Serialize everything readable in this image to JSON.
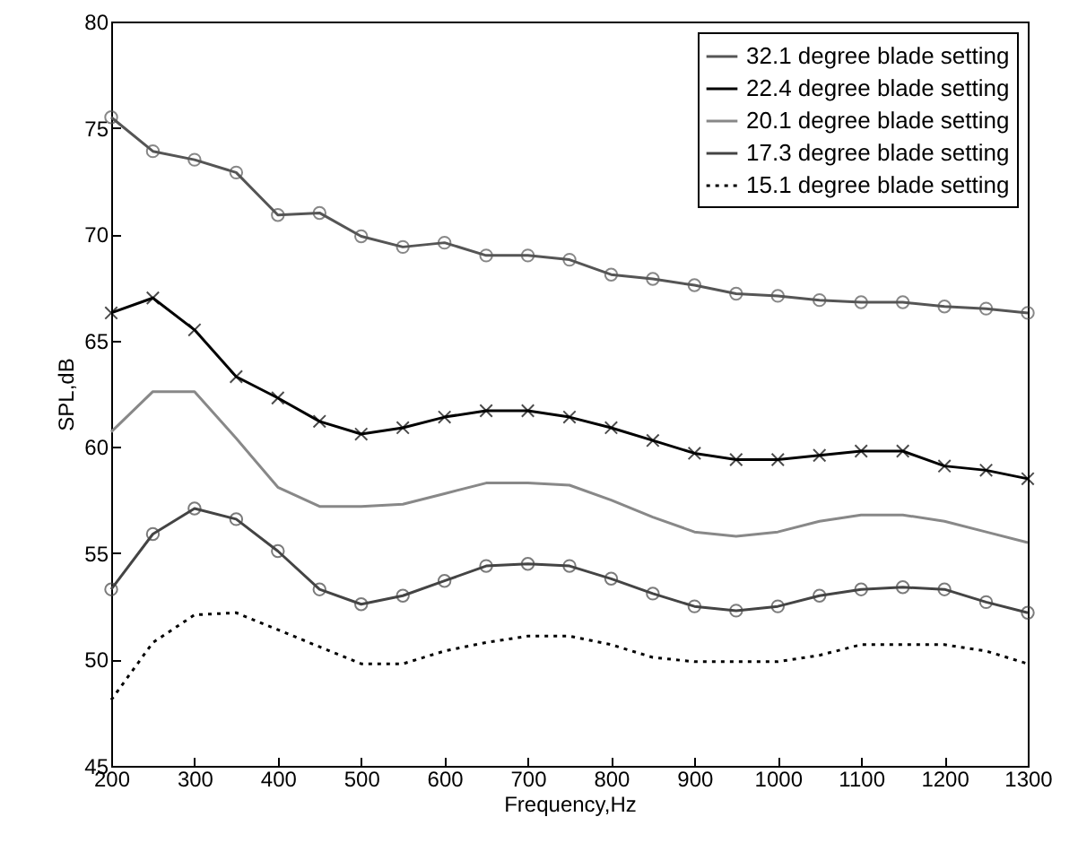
{
  "chart_data": {
    "type": "line",
    "xlabel": "Frequency,Hz",
    "ylabel": "SPL,dB",
    "x": [
      200,
      250,
      300,
      350,
      400,
      450,
      500,
      550,
      600,
      650,
      700,
      750,
      800,
      850,
      900,
      950,
      1000,
      1050,
      1100,
      1150,
      1200,
      1250,
      1300
    ],
    "xlim": [
      200,
      1300
    ],
    "xticks": [
      200,
      300,
      400,
      500,
      600,
      700,
      800,
      900,
      1000,
      1100,
      1200,
      1300
    ],
    "ylim": [
      45,
      80
    ],
    "yticks": [
      45,
      50,
      55,
      60,
      65,
      70,
      75,
      80
    ],
    "grid": false,
    "legend": "top right",
    "series": [
      {
        "name": "32.1 degree blade setting",
        "color": "#555555",
        "marker": "circle",
        "line_style": "solid",
        "values": [
          75.5,
          73.9,
          73.5,
          72.9,
          70.9,
          71.0,
          69.9,
          69.4,
          69.6,
          69.0,
          69.0,
          68.8,
          68.1,
          67.9,
          67.6,
          67.2,
          67.1,
          66.9,
          66.8,
          66.8,
          66.6,
          66.5,
          66.3
        ]
      },
      {
        "name": "22.4 degree blade setting",
        "color": "#000000",
        "marker": "cross",
        "line_style": "solid",
        "values": [
          66.3,
          67.0,
          65.5,
          63.3,
          62.3,
          61.2,
          60.6,
          60.9,
          61.4,
          61.7,
          61.7,
          61.4,
          60.9,
          60.3,
          59.7,
          59.4,
          59.4,
          59.6,
          59.8,
          59.8,
          59.1,
          58.9,
          58.5
        ]
      },
      {
        "name": "20.1 degree blade setting",
        "color": "#888888",
        "marker": "none",
        "line_style": "solid",
        "values": [
          60.7,
          62.6,
          62.6,
          60.4,
          58.1,
          57.2,
          57.2,
          57.3,
          57.8,
          58.3,
          58.3,
          58.2,
          57.5,
          56.7,
          56.0,
          55.8,
          56.0,
          56.5,
          56.8,
          56.8,
          56.5,
          56.0,
          55.5
        ]
      },
      {
        "name": "17.3 degree blade setting",
        "color": "#444444",
        "marker": "circle",
        "line_style": "solid",
        "values": [
          53.3,
          55.9,
          57.1,
          56.6,
          55.1,
          53.3,
          52.6,
          53.0,
          53.7,
          54.4,
          54.5,
          54.4,
          53.8,
          53.1,
          52.5,
          52.3,
          52.5,
          53.0,
          53.3,
          53.4,
          53.3,
          52.7,
          52.2
        ]
      },
      {
        "name": "15.1 degree blade setting",
        "color": "#000000",
        "marker": "none",
        "line_style": "dotted",
        "values": [
          48.1,
          50.8,
          52.1,
          52.2,
          51.4,
          50.6,
          49.8,
          49.8,
          50.4,
          50.8,
          51.1,
          51.1,
          50.7,
          50.1,
          49.9,
          49.9,
          49.9,
          50.2,
          50.7,
          50.7,
          50.7,
          50.4,
          49.8
        ]
      }
    ]
  }
}
